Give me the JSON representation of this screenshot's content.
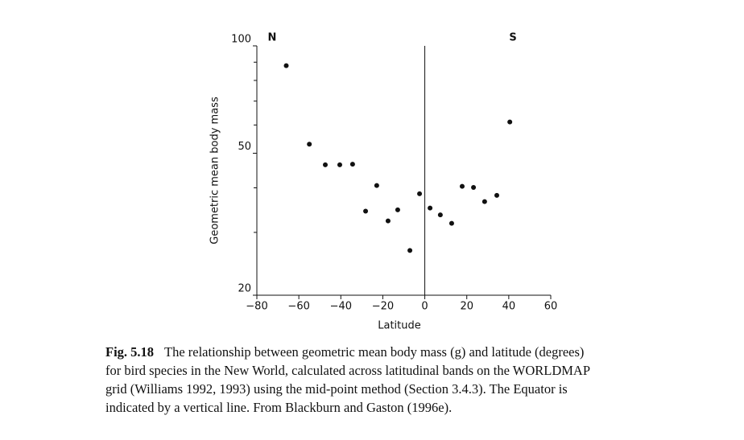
{
  "chart_data": {
    "type": "scatter",
    "xlabel": "Latitude",
    "ylabel": "Geometric mean body mass",
    "annotations": {
      "left": "N",
      "right": "S"
    },
    "x": [
      -66,
      -55,
      -47.4,
      -40.5,
      -34.4,
      -28.2,
      -22.9,
      -17.5,
      -12.9,
      -7.1,
      -2.5,
      2.5,
      7.4,
      12.8,
      17.8,
      23.2,
      28.5,
      34.3,
      40.5
    ],
    "values": [
      88,
      53,
      46.4,
      46.4,
      46.6,
      34.4,
      40.6,
      32.3,
      34.7,
      26.7,
      38.5,
      35.1,
      33.6,
      31.8,
      40.4,
      40.1,
      36.6,
      38.1,
      61.2
    ],
    "color": "#111111",
    "xlim": [
      -80,
      60
    ],
    "xticks": [
      {
        "value": -80,
        "label": "−80"
      },
      {
        "value": -60,
        "label": "−60"
      },
      {
        "value": -40,
        "label": "−40"
      },
      {
        "value": -20,
        "label": "−20"
      },
      0,
      20,
      40,
      60
    ],
    "ylim": [
      20,
      100
    ],
    "ylog": true,
    "yticks": [
      20,
      50,
      100
    ],
    "yminorticks": [
      30,
      40,
      60,
      70,
      80,
      90
    ],
    "vline": 0,
    "caption": {
      "label": "Fig. 5.18",
      "lines": [
        "The relationship between geometric mean body mass (g) and latitude (degrees)",
        "for bird species in the New World, calculated across latitudinal bands on the WORLDMAP",
        "grid (Williams 1992, 1993) using the mid-point method (Section 3.4.3). The Equator is",
        "indicated by a vertical line. From Blackburn and Gaston (1996e)."
      ]
    }
  }
}
